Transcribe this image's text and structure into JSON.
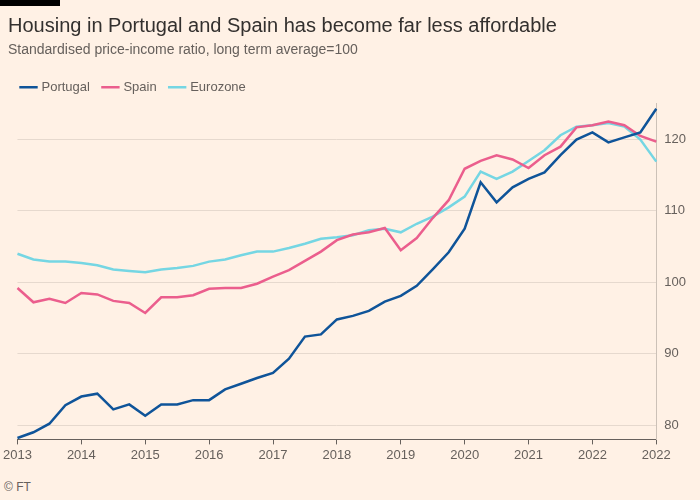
{
  "chart_data": {
    "type": "line",
    "title": "Housing in Portugal and Spain has become far less affordable",
    "subtitle": "Standardised price-income ratio, long term average=100",
    "source": "© FT",
    "categories": [
      "2013",
      null,
      null,
      null,
      "2014",
      null,
      null,
      null,
      "2015",
      null,
      null,
      null,
      "2016",
      null,
      null,
      null,
      "2017",
      null,
      null,
      null,
      "2018",
      null,
      null,
      null,
      "2019",
      null,
      null,
      null,
      "2020",
      null,
      null,
      null,
      "2021",
      null,
      null,
      null,
      "2022",
      null,
      null,
      null,
      "2022"
    ],
    "series": [
      {
        "name": "Portugal",
        "color": "#0f5499",
        "values": [
          78.2,
          79,
          80.2,
          82.8,
          84,
          84.4,
          82.2,
          82.9,
          81.3,
          82.9,
          82.9,
          83.5,
          83.5,
          85,
          85.8,
          86.6,
          87.3,
          89.3,
          92.4,
          92.7,
          94.8,
          95.3,
          96,
          97.3,
          98.1,
          99.5,
          101.8,
          104.2,
          107.5,
          114,
          111.2,
          113.3,
          114.5,
          115.4,
          117.8,
          120,
          121,
          119.6,
          120.3,
          121,
          124.3
        ]
      },
      {
        "name": "Spain",
        "color": "#eb5e8d",
        "values": [
          99.2,
          97.2,
          97.7,
          97.1,
          98.5,
          98.3,
          97.4,
          97.1,
          95.7,
          97.9,
          97.9,
          98.2,
          99.1,
          99.2,
          99.2,
          99.8,
          100.8,
          101.7,
          103,
          104.3,
          105.9,
          106.7,
          107,
          107.6,
          104.5,
          106.2,
          109,
          111.5,
          115.9,
          117,
          117.8,
          117.2,
          116,
          117.8,
          119,
          121.7,
          122,
          122.5,
          122,
          120.5,
          119.7
        ]
      },
      {
        "name": "Eurozone",
        "color": "#75d6e3",
        "values": [
          104,
          103.2,
          102.9,
          102.9,
          102.7,
          102.4,
          101.8,
          101.6,
          101.4,
          101.8,
          102,
          102.3,
          102.9,
          103.2,
          103.8,
          104.3,
          104.3,
          104.8,
          105.4,
          106.1,
          106.3,
          106.6,
          107.3,
          107.5,
          107,
          108.2,
          109.2,
          110.5,
          112,
          115.5,
          114.5,
          115.5,
          117,
          118.5,
          120.6,
          121.8,
          122,
          122.3,
          121.8,
          120,
          116.9
        ]
      }
    ],
    "ylim": [
      78,
      125
    ],
    "yticks": [
      80,
      90,
      100,
      110,
      120
    ],
    "grid": true,
    "legend": "top-left"
  }
}
